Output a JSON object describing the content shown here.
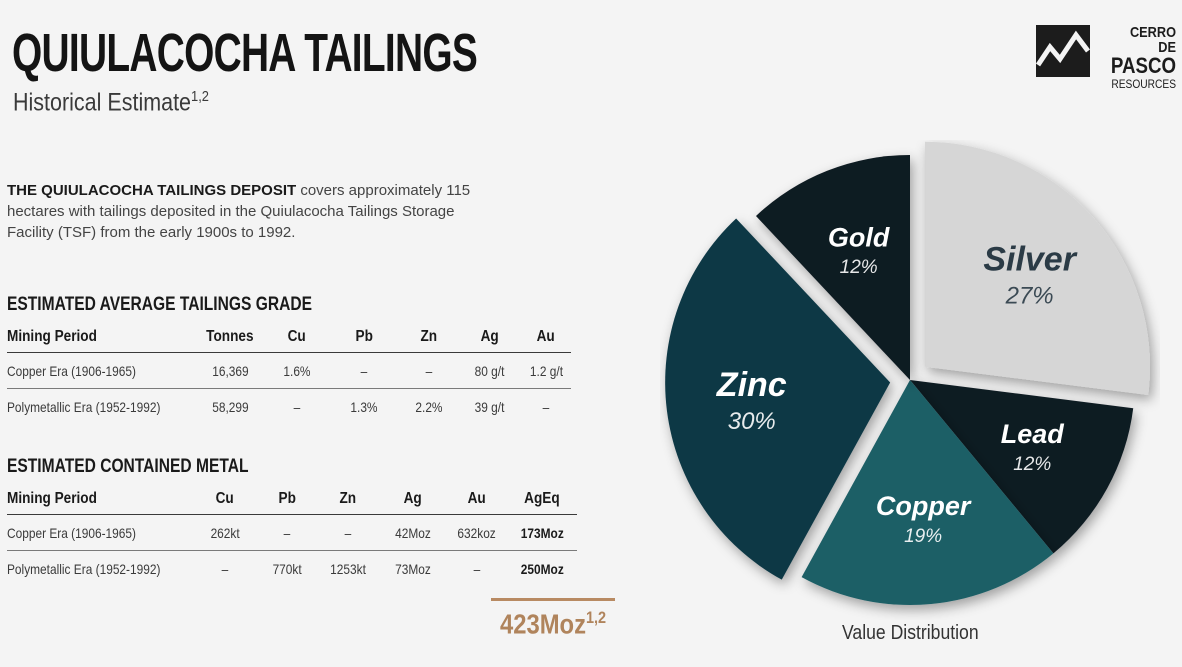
{
  "header": {
    "title": "QUIULACOCHA TAILINGS",
    "subtitle": "Historical Estimate",
    "subtitle_sup": "1,2"
  },
  "logo": {
    "line1": "CERRO DE",
    "line2": "PASCO",
    "line3": "RESOURCES",
    "icon": "mountain-logo-icon"
  },
  "intro": {
    "lead": "THE QUIULACOCHA TAILINGS DEPOSIT",
    "body": " covers approximately 115 hectares with tailings deposited in the Quiulacocha Tailings Storage Facility (TSF) from the early 1900s to 1992."
  },
  "grade_table": {
    "heading": "ESTIMATED AVERAGE TAILINGS GRADE",
    "columns": [
      "Mining Period",
      "Tonnes",
      "Cu",
      "Pb",
      "Zn",
      "Ag",
      "Au"
    ],
    "rows": [
      [
        "Copper Era (1906-1965)",
        "16,369",
        "1.6%",
        "–",
        "–",
        "80 g/t",
        "1.2 g/t"
      ],
      [
        "Polymetallic Era (1952-1992)",
        "58,299",
        "–",
        "1.3%",
        "2.2%",
        "39 g/t",
        "–"
      ]
    ]
  },
  "metal_table": {
    "heading": "ESTIMATED CONTAINED METAL",
    "columns": [
      "Mining Period",
      "Cu",
      "Pb",
      "Zn",
      "Ag",
      "Au",
      "AgEq"
    ],
    "rows": [
      [
        "Copper Era (1906-1965)",
        "262kt",
        "–",
        "–",
        "42Moz",
        "632koz",
        "173Moz"
      ],
      [
        "Polymetallic Era (1952-1992)",
        "–",
        "770kt",
        "1253kt",
        "73Moz",
        "–",
        "250Moz"
      ]
    ]
  },
  "total": {
    "value": "423Moz",
    "sup": "1,2"
  },
  "chart_data": {
    "type": "pie",
    "title": "Value Distribution",
    "slices": [
      {
        "label": "Silver",
        "pct_label": "27%",
        "value": 27,
        "color": "#d6d6d6",
        "text_color": "#2b3b46",
        "exploded": true
      },
      {
        "label": "Lead",
        "pct_label": "12%",
        "value": 12,
        "color": "#0f1a23",
        "text_color": "#ffffff",
        "exploded": false
      },
      {
        "label": "Copper",
        "pct_label": "19%",
        "value": 19,
        "color": "#1f5e66",
        "text_color": "#ffffff",
        "exploded": false
      },
      {
        "label": "Zinc",
        "pct_label": "30%",
        "value": 30,
        "color": "#113845",
        "text_color": "#ffffff",
        "exploded": true
      },
      {
        "label": "Gold",
        "pct_label": "12%",
        "value": 12,
        "color": "#111a22",
        "text_color": "#ffffff",
        "exploded": false
      }
    ]
  }
}
